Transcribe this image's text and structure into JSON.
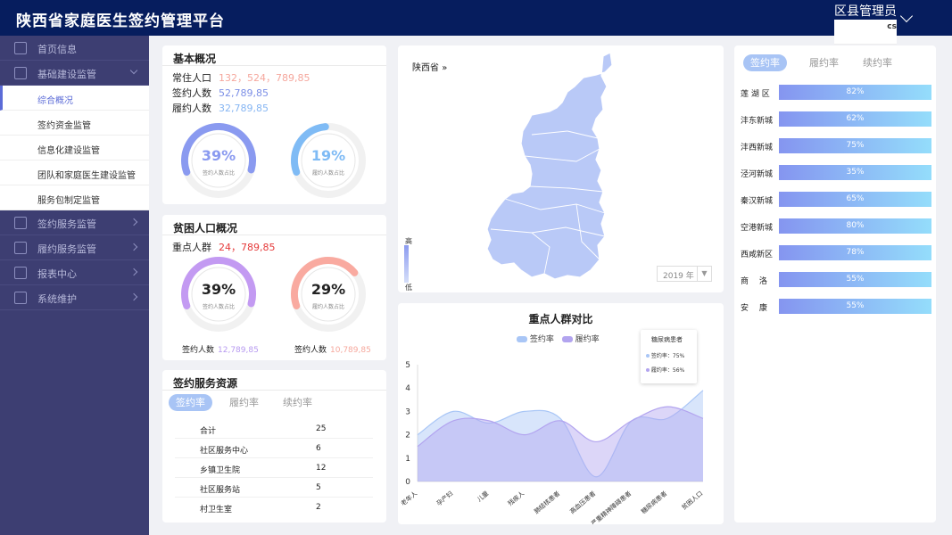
{
  "app": {
    "title": "陕西省家庭医生签约管理平台",
    "user": "区县管理员",
    "user_sub": "cs"
  },
  "sidebar": {
    "items": [
      {
        "label": "首页信息",
        "icon": "home-icon"
      },
      {
        "label": "基础建设监管",
        "icon": "monitor-icon",
        "expanded": true,
        "children": [
          "综合概况",
          "签约资金监管",
          "信息化建设监管",
          "团队和家庭医生建设监管",
          "服务包制定监管"
        ],
        "active_child": 0
      },
      {
        "label": "签约服务监管",
        "icon": "stack-icon"
      },
      {
        "label": "履约服务监管",
        "icon": "document-icon"
      },
      {
        "label": "报表中心",
        "icon": "bar-chart-icon"
      },
      {
        "label": "系统维护",
        "icon": "settings-icon"
      }
    ]
  },
  "overview": {
    "title": "基本概况",
    "resident_label": "常住人口",
    "resident_value": "132，524，789,85",
    "signed_label": "签约人数",
    "signed_value": "52,789,85",
    "performed_label": "履约人数",
    "performed_value": "32,789,85",
    "donut1": {
      "pct_text": "39%",
      "value": 0.39,
      "caption": "签约人数占比",
      "color": "#8a9af0"
    },
    "donut2": {
      "pct_text": "19%",
      "value": 0.19,
      "caption": "履约人数占比",
      "color": "#7fbbf5"
    }
  },
  "poverty": {
    "title": "贫困人口概况",
    "key_label": "重点人群",
    "key_value": "24，789,85",
    "donut1": {
      "pct_text": "39%",
      "value": 0.39,
      "caption": "签约人数占比",
      "color": "#c39af2"
    },
    "donut2": {
      "pct_text": "29%",
      "value": 0.29,
      "caption": "履约人数占比",
      "color": "#f9aaa0"
    },
    "signed_label": "签约人数",
    "signed_value": "12,789,85",
    "performed_label": "签约人数",
    "performed_value": "10,789,85"
  },
  "resources": {
    "title": "签约服务资源",
    "tabs": [
      "签约率",
      "履约率",
      "续约率"
    ],
    "active_tab": 0,
    "rows": [
      {
        "name": "合计",
        "count": "25"
      },
      {
        "name": "社区服务中心",
        "count": "6"
      },
      {
        "name": "乡镇卫生院",
        "count": "12"
      },
      {
        "name": "社区服务站",
        "count": "5"
      },
      {
        "name": "村卫生室",
        "count": "2"
      }
    ]
  },
  "map": {
    "region": "陕西省",
    "legend_high": "高",
    "legend_low": "低",
    "year": "2019 年"
  },
  "compare": {
    "title": "重点人群对比",
    "tooltip": {
      "title": "糖尿病患者",
      "line1": "签约率：75%",
      "line2": "履约率：56%"
    }
  },
  "chart_data": {
    "type": "area",
    "title": "重点人群对比",
    "categories": [
      "老年人",
      "孕产妇",
      "儿童",
      "残疾人",
      "肺结核患者",
      "高血压患者",
      "严重精神障碍患者",
      "糖尿病患者",
      "贫困人口"
    ],
    "ylim": [
      0,
      5
    ],
    "yticks": [
      0,
      1,
      2,
      3,
      4,
      5
    ],
    "series": [
      {
        "name": "签约率",
        "color": "#a9c6f6",
        "values": [
          2.0,
          3.0,
          2.5,
          3.0,
          2.7,
          0.2,
          2.6,
          2.7,
          3.9
        ]
      },
      {
        "name": "履约率",
        "color": "#b2a4ef",
        "values": [
          1.5,
          2.6,
          2.6,
          2.0,
          2.6,
          1.7,
          2.6,
          3.2,
          2.7
        ]
      }
    ]
  },
  "rates": {
    "tabs": [
      "签约率",
      "履约率",
      "续约率"
    ],
    "active_tab": 0,
    "rows": [
      {
        "name": "莲 湖 区",
        "pct": "82%"
      },
      {
        "name": "沣东新城",
        "pct": "62%"
      },
      {
        "name": "沣西新城",
        "pct": "75%"
      },
      {
        "name": "泾河新城",
        "pct": "35%"
      },
      {
        "name": "秦汉新城",
        "pct": "65%"
      },
      {
        "name": "空港新城",
        "pct": "80%"
      },
      {
        "name": "西咸新区",
        "pct": "78%"
      },
      {
        "name": "商　 洛",
        "pct": "55%"
      },
      {
        "name": "安　 康",
        "pct": "55%"
      }
    ]
  }
}
